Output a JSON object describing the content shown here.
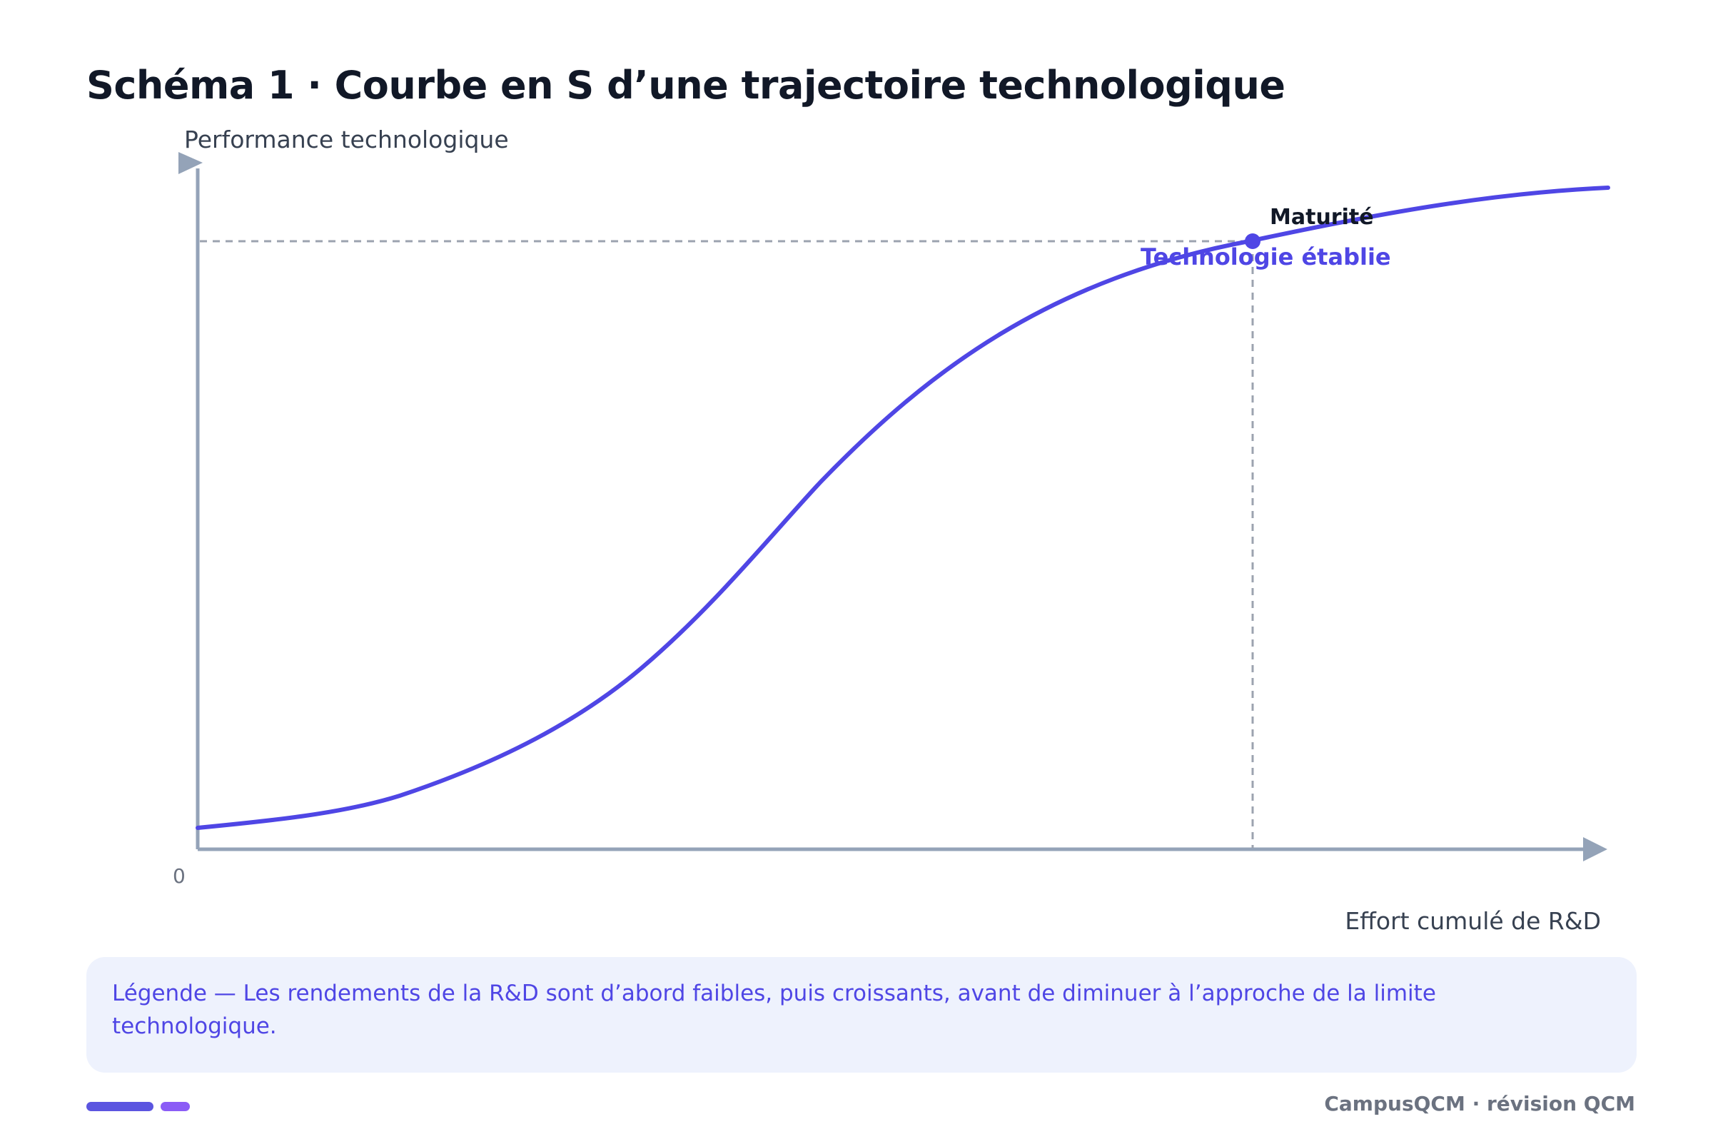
{
  "header": {
    "title": "Schéma 1 · Courbe en S d’une trajectoire technologique"
  },
  "diagram": {
    "y_axis_label": "Performance technologique",
    "x_axis_label": "Effort cumulé de R&D",
    "origin_label": "0",
    "marker": {
      "label": "Maturité",
      "sublabel": "Technologie établie"
    },
    "colors": {
      "curve": "#4f46e5",
      "axis": "#94a3b8",
      "guide": "#9ca3af"
    }
  },
  "legend": {
    "text": "Légende — Les rendements de la R&D sont d’abord faibles, puis croissants, avant de diminuer à l’approche de la limite technologique."
  },
  "footer": {
    "brand": "CampusQCM · révision QCM"
  }
}
